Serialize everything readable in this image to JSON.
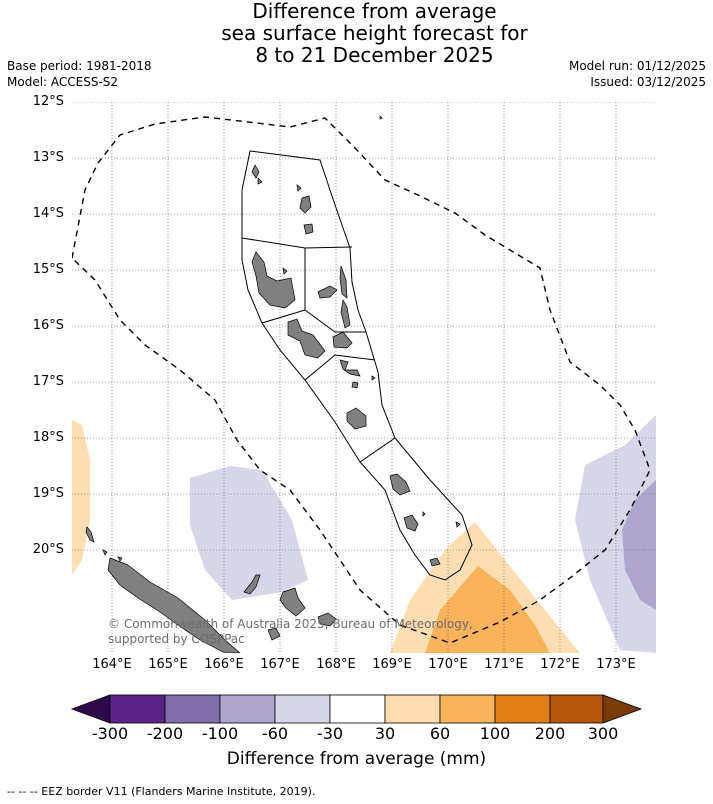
{
  "title": {
    "line1": "Difference from average",
    "line2": "sea surface height forecast for",
    "line3": "8 to 21 December 2025"
  },
  "meta": {
    "base_period": "Base period: 1981-2018",
    "model": "Model: ACCESS-S2",
    "model_run": "Model run: 01/12/2025",
    "issued": "Issued: 03/12/2025"
  },
  "axes": {
    "lat_labels": [
      "12°S",
      "13°S",
      "14°S",
      "15°S",
      "16°S",
      "17°S",
      "18°S",
      "19°S",
      "20°S"
    ],
    "lon_labels": [
      "164°E",
      "165°E",
      "166°E",
      "167°E",
      "168°E",
      "169°E",
      "170°E",
      "171°E",
      "172°E",
      "173°E"
    ]
  },
  "colorbar": {
    "ticks": [
      "-300",
      "-200",
      "-100",
      "-60",
      "-30",
      "30",
      "60",
      "100",
      "200",
      "300"
    ],
    "colors": [
      "#2e0a4a",
      "#5a2586",
      "#7f6fac",
      "#aea6cc",
      "#d7d7e9",
      "#ffffff",
      "#fddeb0",
      "#f9b35b",
      "#e07f16",
      "#b45609",
      "#7a3b07"
    ],
    "title": "Difference from average (mm)"
  },
  "copyright": "© Commonwealth of Australia 2025, Bureau of Meteorology, supported by COSPPac",
  "footnote": "--  --  -- EEZ border V11 (Flanders Marine Institute, 2019).",
  "colors": {
    "land": "#808080",
    "grid": "#555555"
  }
}
